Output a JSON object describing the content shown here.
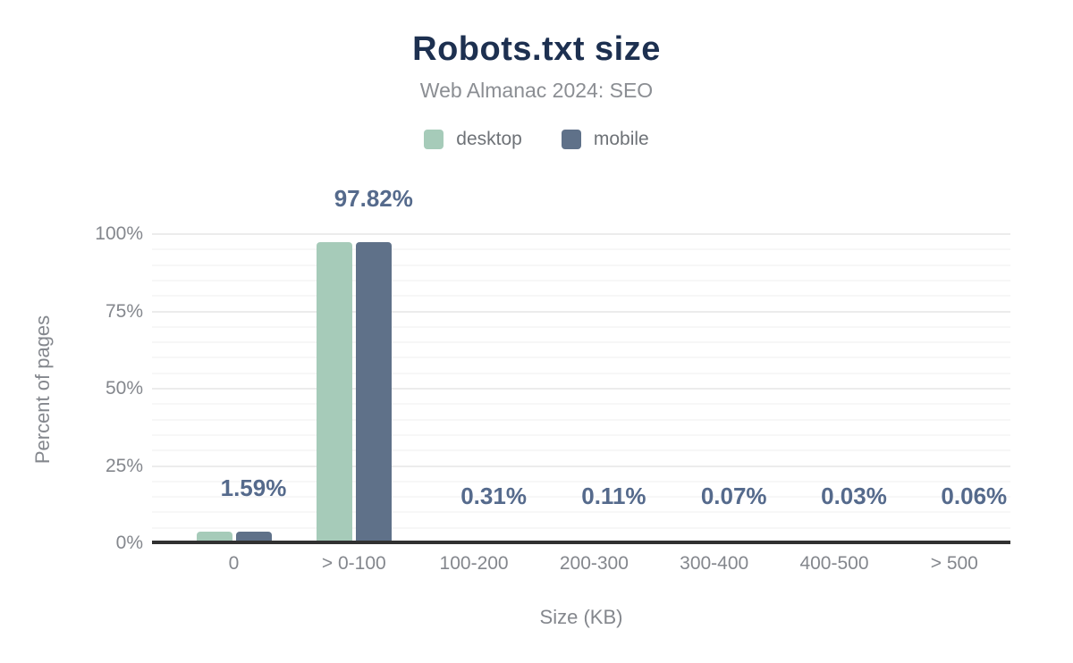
{
  "header": {
    "title": "Robots.txt size",
    "subtitle": "Web Almanac 2024: SEO"
  },
  "legend": {
    "items": [
      {
        "label": "desktop",
        "color": "#a6cbb9"
      },
      {
        "label": "mobile",
        "color": "#5f7189"
      }
    ],
    "position": "top"
  },
  "chart_data": {
    "type": "bar",
    "title": "Robots.txt size",
    "subtitle": "Web Almanac 2024: SEO",
    "categories": [
      "0",
      "> 0-100",
      "100-200",
      "200-300",
      "300-400",
      "400-500",
      "> 500"
    ],
    "series": [
      {
        "name": "desktop",
        "color": "#a6cbb9",
        "values": [
          1.59,
          97.82,
          0.31,
          0.11,
          0.07,
          0.03,
          0.06
        ]
      },
      {
        "name": "mobile",
        "color": "#5f7189",
        "values": [
          1.59,
          97.82,
          0.31,
          0.11,
          0.07,
          0.03,
          0.06
        ],
        "data_labels": [
          "1.59%",
          "97.82%",
          "0.31%",
          "0.11%",
          "0.07%",
          "0.03%",
          "0.06%"
        ]
      }
    ],
    "xlabel": "Size (KB)",
    "ylabel": "Percent of pages",
    "ylim": [
      0,
      100
    ],
    "yticks": [
      {
        "value": 0,
        "label": "0%"
      },
      {
        "value": 25,
        "label": "25%"
      },
      {
        "value": 50,
        "label": "50%"
      },
      {
        "value": 75,
        "label": "75%"
      },
      {
        "value": 100,
        "label": "100%"
      }
    ],
    "grid": {
      "horizontal": true,
      "major_step": 25,
      "minor_step": 5
    },
    "legend_position": "top"
  },
  "colors": {
    "background": "#ffffff",
    "title": "#1d3050",
    "subtitle": "#8b8e93",
    "legend_text": "#6e7277",
    "axis_text": "#84878d",
    "data_label": "#556a8c",
    "desktop_bar": "#a6cbb9",
    "mobile_bar": "#5f7189",
    "grid_major": "#ececec",
    "grid_minor": "#f7f7f7",
    "axis_line": "#313131"
  }
}
